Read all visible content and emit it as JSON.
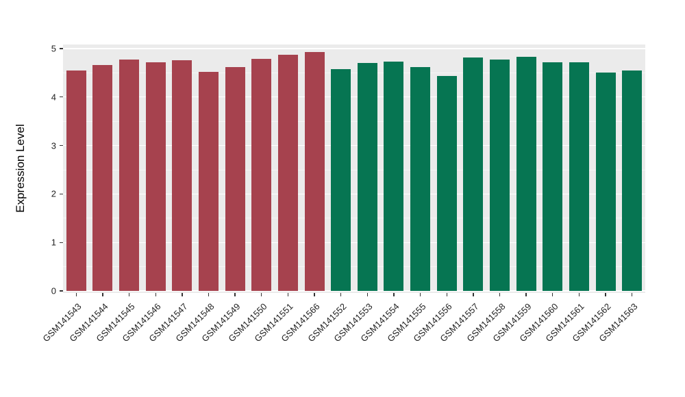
{
  "chart_data": {
    "type": "bar",
    "title": "",
    "xlabel": "",
    "ylabel": "Expression Level",
    "ylim": [
      0,
      5
    ],
    "yticks": [
      0,
      1,
      2,
      3,
      4,
      5
    ],
    "minor_ticks": [
      0.5,
      1.5,
      2.5,
      3.5,
      4.5
    ],
    "grid": true,
    "legend": "none",
    "panel_background": "#EBEBEB",
    "grid_color": "#FFFFFF",
    "categories": [
      "GSM141543",
      "GSM141544",
      "GSM141545",
      "GSM141546",
      "GSM141547",
      "GSM141548",
      "GSM141549",
      "GSM141550",
      "GSM141551",
      "GSM141566",
      "GSM141552",
      "GSM141553",
      "GSM141554",
      "GSM141555",
      "GSM141556",
      "GSM141557",
      "GSM141558",
      "GSM141559",
      "GSM141560",
      "GSM141561",
      "GSM141562",
      "GSM141563"
    ],
    "values": [
      4.55,
      4.66,
      4.78,
      4.72,
      4.76,
      4.52,
      4.62,
      4.79,
      4.87,
      4.93,
      4.58,
      4.7,
      4.73,
      4.62,
      4.44,
      4.81,
      4.77,
      4.83,
      4.72,
      4.72,
      4.5,
      4.55
    ],
    "bar_groups": [
      0,
      0,
      0,
      0,
      0,
      0,
      0,
      0,
      0,
      0,
      1,
      1,
      1,
      1,
      1,
      1,
      1,
      1,
      1,
      1,
      1,
      1
    ],
    "group_colors": [
      "#A6424E",
      "#067552"
    ]
  }
}
